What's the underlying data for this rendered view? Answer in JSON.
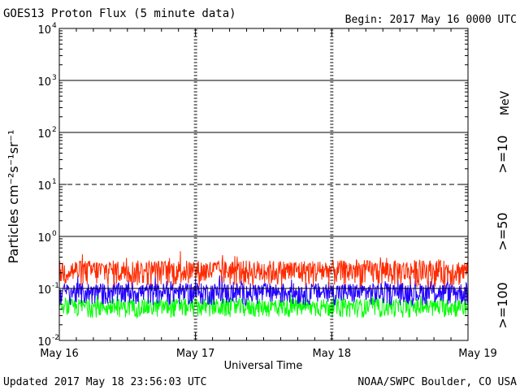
{
  "header": {
    "title": "GOES13 Proton Flux (5 minute data)",
    "begin": "Begin: 2017 May 16 0000 UTC"
  },
  "footer": {
    "updated": "Updated 2017 May 18 23:56:03 UTC",
    "credit": "NOAA/SWPC Boulder, CO USA"
  },
  "chart_data": {
    "type": "line",
    "title": "GOES13 Proton Flux (5 minute data)",
    "xlabel": "Universal Time",
    "ylabel": "Particles cm⁻²s⁻¹sr⁻¹",
    "y_scale": "log",
    "ylim": [
      0.01,
      10000
    ],
    "y_ticks": [
      {
        "base": "10",
        "exp": "4"
      },
      {
        "base": "10",
        "exp": "3"
      },
      {
        "base": "10",
        "exp": "2"
      },
      {
        "base": "10",
        "exp": "1"
      },
      {
        "base": "10",
        "exp": "0"
      },
      {
        "base": "10",
        "exp": "-1"
      },
      {
        "base": "10",
        "exp": "-2"
      }
    ],
    "x_ticks": [
      "May 16",
      "May 17",
      "May 18",
      "May 19"
    ],
    "xlim_days": [
      0,
      3
    ],
    "reference_lines": [
      {
        "value": 1000,
        "style": "solid"
      },
      {
        "value": 100,
        "style": "solid"
      },
      {
        "value": 10,
        "style": "dashed"
      },
      {
        "value": 1,
        "style": "solid"
      },
      {
        "value": 0.1,
        "style": "solid"
      }
    ],
    "unit_label": "MeV",
    "series": [
      {
        "name": ">=10",
        "color": "#ff2a00",
        "baseline": 0.19,
        "spread": 0.12
      },
      {
        "name": ">=50",
        "color": "#2200ff",
        "baseline": 0.075,
        "spread": 0.04
      },
      {
        "name": ">=100",
        "color": "#00ff00",
        "baseline": 0.04,
        "spread": 0.018
      }
    ],
    "grid": false
  },
  "colors": {
    "gte10": "#ff2a00",
    "gte50": "#2200ff",
    "gte100": "#00ff00"
  }
}
